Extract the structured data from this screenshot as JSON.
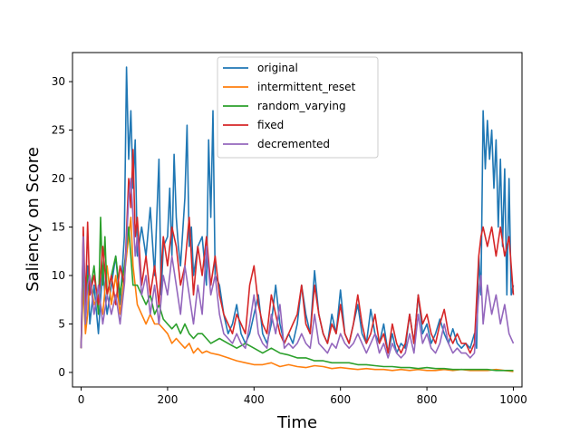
{
  "chart_data": {
    "type": "line",
    "title": "",
    "xlabel": "Time",
    "ylabel": "Saliency on Score",
    "xlim": [
      -20,
      1020
    ],
    "ylim": [
      -1.5,
      33
    ],
    "xticks": [
      0,
      200,
      400,
      600,
      800,
      1000
    ],
    "yticks": [
      0,
      5,
      10,
      15,
      20,
      25,
      30
    ],
    "grid": false,
    "legend_position": "top-center",
    "series": [
      {
        "name": "original",
        "color": "#1f77b4",
        "x": [
          0,
          5,
          10,
          15,
          20,
          30,
          40,
          50,
          55,
          60,
          70,
          80,
          90,
          100,
          105,
          110,
          115,
          120,
          125,
          130,
          140,
          150,
          160,
          170,
          180,
          185,
          190,
          200,
          205,
          210,
          215,
          220,
          225,
          230,
          240,
          245,
          250,
          255,
          260,
          270,
          280,
          290,
          295,
          300,
          305,
          310,
          320,
          330,
          340,
          350,
          360,
          370,
          380,
          390,
          400,
          410,
          420,
          430,
          440,
          450,
          460,
          470,
          480,
          490,
          500,
          510,
          520,
          530,
          540,
          550,
          560,
          570,
          580,
          590,
          600,
          610,
          620,
          630,
          640,
          650,
          660,
          670,
          680,
          690,
          700,
          710,
          720,
          730,
          740,
          750,
          760,
          770,
          780,
          790,
          800,
          810,
          820,
          830,
          840,
          850,
          860,
          870,
          880,
          890,
          900,
          910,
          915,
          920,
          925,
          930,
          935,
          940,
          945,
          950,
          955,
          960,
          965,
          970,
          975,
          980,
          985,
          990,
          995,
          1000
        ],
        "y": [
          2.5,
          14,
          6,
          11,
          5,
          9,
          4,
          11,
          8,
          6,
          9,
          12,
          7,
          14,
          31.5,
          22,
          27,
          19,
          24,
          12,
          15,
          12,
          17,
          10,
          22,
          8,
          13,
          14,
          19,
          12,
          22.5,
          16,
          13,
          11,
          18,
          25.5,
          13,
          15,
          10,
          13,
          14,
          9,
          24,
          16,
          27,
          10,
          9,
          6,
          4,
          5,
          7,
          4,
          3,
          4,
          6,
          8,
          4,
          3,
          5,
          9,
          5,
          3,
          4,
          3,
          5,
          9,
          6,
          4,
          10.5,
          6,
          4,
          3,
          6,
          4,
          8.5,
          4,
          3,
          5,
          7,
          4,
          3,
          6.5,
          4,
          3,
          5,
          2,
          4,
          2,
          3,
          2.5,
          6,
          3,
          8,
          4,
          5,
          3,
          4,
          5.5,
          4,
          3,
          4.5,
          3,
          2.5,
          3,
          2.5,
          4,
          2.5,
          12,
          8,
          27,
          21,
          26,
          22,
          25,
          19,
          24,
          15,
          22,
          13,
          21,
          8,
          20,
          8,
          9
        ]
      },
      {
        "name": "intermittent_reset",
        "color": "#ff7f0e",
        "x": [
          0,
          5,
          10,
          15,
          20,
          30,
          40,
          50,
          60,
          70,
          80,
          90,
          100,
          110,
          115,
          120,
          130,
          140,
          150,
          160,
          170,
          180,
          190,
          200,
          210,
          220,
          230,
          240,
          250,
          260,
          270,
          280,
          290,
          300,
          320,
          340,
          360,
          380,
          400,
          420,
          440,
          460,
          480,
          500,
          520,
          540,
          560,
          580,
          600,
          620,
          640,
          660,
          680,
          700,
          720,
          740,
          760,
          780,
          800,
          820,
          840,
          860,
          880,
          900,
          920,
          940,
          960,
          980,
          1000
        ],
        "y": [
          2.5,
          9,
          4,
          6,
          10,
          7,
          8,
          6,
          11,
          7,
          10,
          6,
          10,
          14,
          16,
          11,
          7,
          6,
          5,
          6,
          5,
          5,
          4.5,
          4,
          3,
          3.5,
          3,
          2.5,
          3,
          2,
          2.5,
          2,
          2.2,
          2,
          1.8,
          1.5,
          1.2,
          1,
          0.8,
          0.8,
          1,
          0.6,
          0.8,
          0.6,
          0.5,
          0.7,
          0.6,
          0.4,
          0.5,
          0.4,
          0.3,
          0.4,
          0.3,
          0.3,
          0.2,
          0.3,
          0.2,
          0.3,
          0.2,
          0.2,
          0.3,
          0.2,
          0.3,
          0.2,
          0.2,
          0.2,
          0.3,
          0.2,
          0.1
        ]
      },
      {
        "name": "random_varying",
        "color": "#2ca02c",
        "x": [
          0,
          5,
          10,
          15,
          20,
          30,
          40,
          45,
          50,
          55,
          60,
          70,
          80,
          90,
          100,
          110,
          120,
          130,
          140,
          150,
          160,
          170,
          180,
          190,
          200,
          210,
          220,
          230,
          240,
          250,
          260,
          270,
          280,
          290,
          300,
          320,
          340,
          360,
          380,
          400,
          420,
          440,
          460,
          480,
          500,
          520,
          540,
          560,
          580,
          600,
          620,
          640,
          660,
          680,
          700,
          720,
          740,
          760,
          780,
          800,
          820,
          840,
          860,
          880,
          900,
          920,
          940,
          960,
          980,
          1000
        ],
        "y": [
          2.5,
          12,
          5,
          10,
          8,
          11,
          6,
          16,
          9,
          14,
          8,
          10,
          12,
          8,
          11,
          15,
          9,
          9,
          8,
          7,
          8,
          6,
          7,
          5.5,
          5,
          4.5,
          5,
          4,
          5,
          4,
          3.5,
          4,
          4,
          3.5,
          3,
          3.5,
          3,
          2.5,
          3,
          2.5,
          2,
          2.5,
          2,
          1.8,
          1.5,
          1.5,
          1.2,
          1.2,
          1,
          1,
          1,
          0.8,
          0.8,
          0.7,
          0.6,
          0.6,
          0.5,
          0.5,
          0.4,
          0.5,
          0.4,
          0.4,
          0.3,
          0.3,
          0.3,
          0.3,
          0.3,
          0.2,
          0.2,
          0.2
        ]
      },
      {
        "name": "fixed",
        "color": "#d62728",
        "x": [
          0,
          5,
          10,
          15,
          20,
          30,
          40,
          50,
          60,
          70,
          80,
          90,
          100,
          110,
          115,
          120,
          125,
          130,
          140,
          150,
          160,
          170,
          180,
          190,
          200,
          210,
          220,
          230,
          240,
          250,
          260,
          270,
          280,
          290,
          300,
          310,
          320,
          330,
          340,
          350,
          360,
          370,
          380,
          390,
          400,
          410,
          420,
          430,
          440,
          450,
          460,
          470,
          480,
          490,
          500,
          510,
          520,
          530,
          540,
          550,
          560,
          570,
          580,
          590,
          600,
          610,
          620,
          630,
          640,
          650,
          660,
          670,
          680,
          690,
          700,
          710,
          720,
          730,
          740,
          750,
          760,
          770,
          780,
          790,
          800,
          810,
          820,
          830,
          840,
          850,
          860,
          870,
          880,
          890,
          900,
          910,
          920,
          925,
          930,
          940,
          950,
          960,
          970,
          980,
          990,
          1000
        ],
        "y": [
          2.5,
          15,
          7,
          15.5,
          8,
          10,
          7,
          13,
          8,
          10,
          7,
          11,
          9,
          20,
          17,
          23,
          14,
          16,
          9,
          12,
          8,
          11,
          7,
          14,
          11,
          15,
          13,
          9,
          11,
          16,
          8,
          13,
          10,
          14,
          9,
          12,
          8,
          6,
          5,
          4,
          6,
          5,
          4,
          9,
          11,
          7,
          5,
          4,
          8,
          6,
          4,
          3,
          4,
          5,
          6,
          9,
          5,
          4,
          9,
          6,
          4,
          3,
          5,
          4,
          7,
          4,
          3,
          5,
          8,
          5,
          3,
          4,
          6,
          3,
          4,
          2,
          5,
          3,
          2,
          3,
          6,
          3,
          8,
          5,
          6,
          4,
          3,
          5,
          6.5,
          4,
          3,
          4,
          3,
          3,
          2,
          3,
          12,
          14,
          15,
          13,
          15,
          12,
          15,
          12,
          14,
          8
        ]
      },
      {
        "name": "decremented",
        "color": "#9467bd",
        "x": [
          0,
          5,
          10,
          15,
          20,
          30,
          40,
          50,
          60,
          70,
          80,
          90,
          100,
          110,
          115,
          120,
          125,
          130,
          140,
          150,
          160,
          170,
          180,
          190,
          200,
          210,
          220,
          230,
          240,
          250,
          260,
          270,
          280,
          290,
          300,
          310,
          320,
          330,
          340,
          350,
          360,
          370,
          380,
          390,
          400,
          410,
          420,
          430,
          440,
          450,
          460,
          470,
          480,
          490,
          500,
          510,
          520,
          530,
          540,
          550,
          560,
          570,
          580,
          590,
          600,
          610,
          620,
          630,
          640,
          650,
          660,
          670,
          680,
          690,
          700,
          710,
          720,
          730,
          740,
          750,
          760,
          770,
          780,
          790,
          800,
          810,
          820,
          830,
          840,
          850,
          860,
          870,
          880,
          890,
          900,
          910,
          920,
          925,
          930,
          940,
          950,
          960,
          970,
          980,
          990,
          1000
        ],
        "y": [
          2.5,
          14,
          5,
          9,
          10,
          6,
          9,
          5,
          8,
          6,
          8,
          5,
          9,
          18,
          20,
          16,
          12,
          14,
          8,
          10,
          6,
          9,
          5,
          10,
          8,
          12,
          9,
          6,
          11,
          8,
          5,
          9,
          6,
          13,
          8,
          10,
          6,
          4,
          3.5,
          3,
          4,
          3,
          2.5,
          5,
          8,
          4,
          3,
          2.5,
          6,
          4,
          7,
          2.5,
          3,
          2.5,
          3,
          4,
          3,
          2.5,
          6,
          3,
          2.5,
          2,
          3,
          2.5,
          4,
          3,
          2.5,
          3,
          4,
          3,
          2,
          3,
          4,
          2,
          3,
          1.5,
          3,
          2,
          1.5,
          2,
          4,
          2,
          6,
          3,
          4,
          2.5,
          2,
          3,
          5,
          3,
          2,
          2.5,
          2,
          2,
          1.5,
          2,
          8,
          10,
          5,
          9,
          6,
          8,
          5,
          7,
          4,
          3
        ]
      }
    ]
  }
}
